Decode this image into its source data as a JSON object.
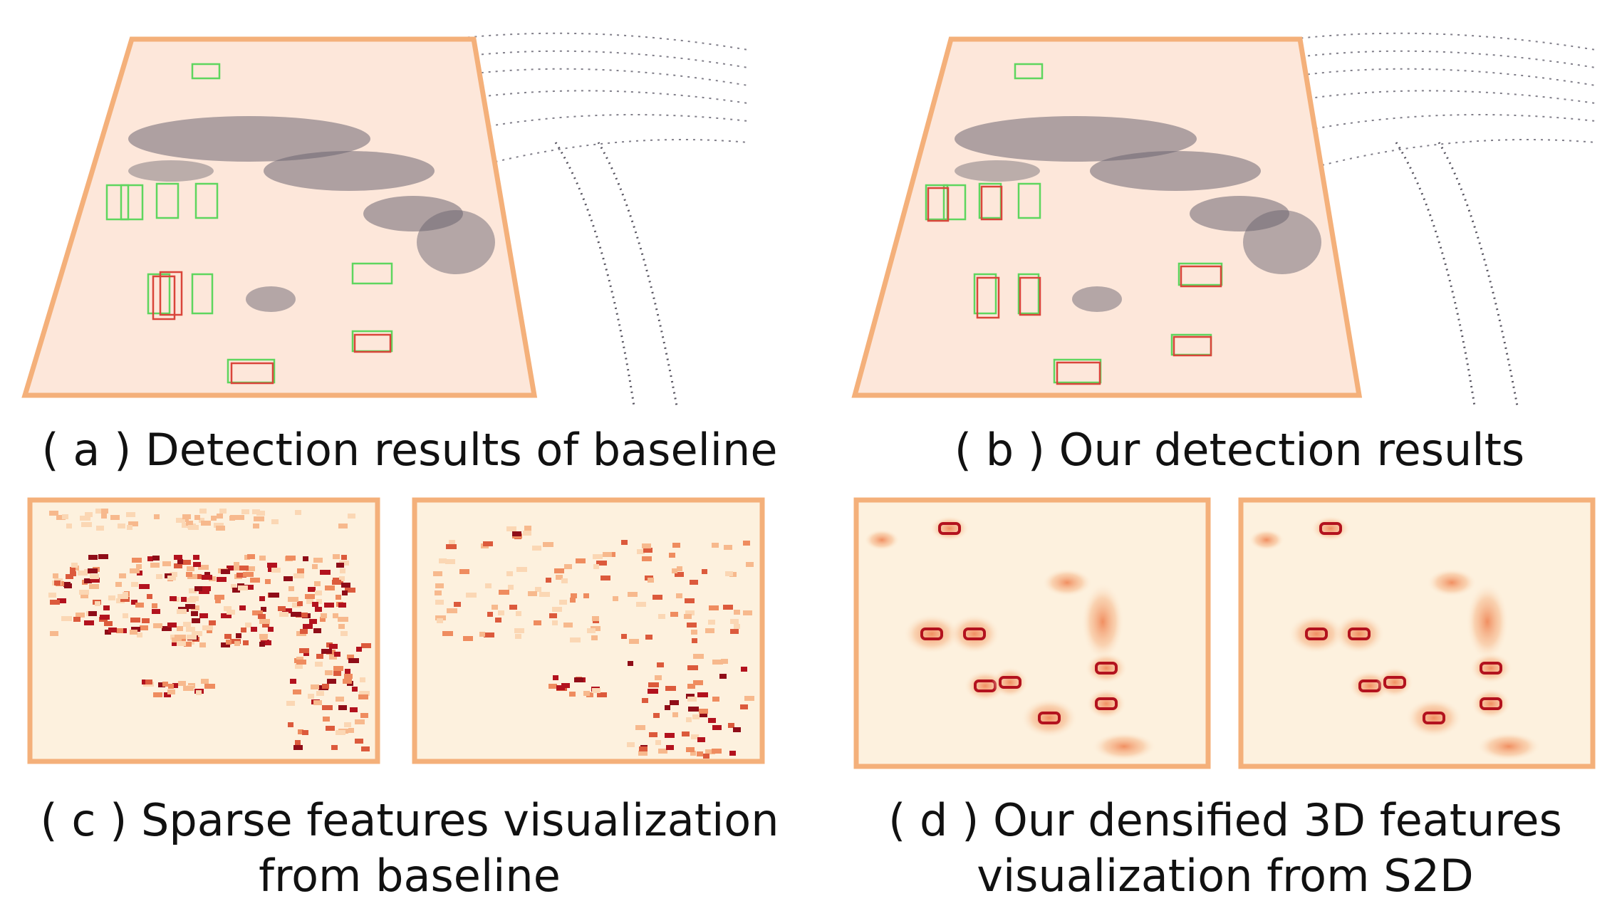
{
  "figure": {
    "panel_a": {
      "caption": "( a )  Detection results of baseline"
    },
    "panel_b": {
      "caption": "( b ) Our detection results"
    },
    "panel_c": {
      "caption_line1": "( c ) Sparse features visualization",
      "caption_line2": "from baseline"
    },
    "panel_d": {
      "caption_line1": "( d ) Our densified 3D features",
      "caption_line2": "visualization from S2D"
    }
  },
  "colors": {
    "frame_orange": "#f4b07a",
    "region_fill": "#fde7da",
    "points": "#5c5866",
    "box_gt_green": "#5ed65e",
    "box_pred_red": "#d9453a",
    "heat_low": "#fdf1de",
    "heat_mid": "#f3a26f",
    "heat_high": "#b3121e"
  }
}
